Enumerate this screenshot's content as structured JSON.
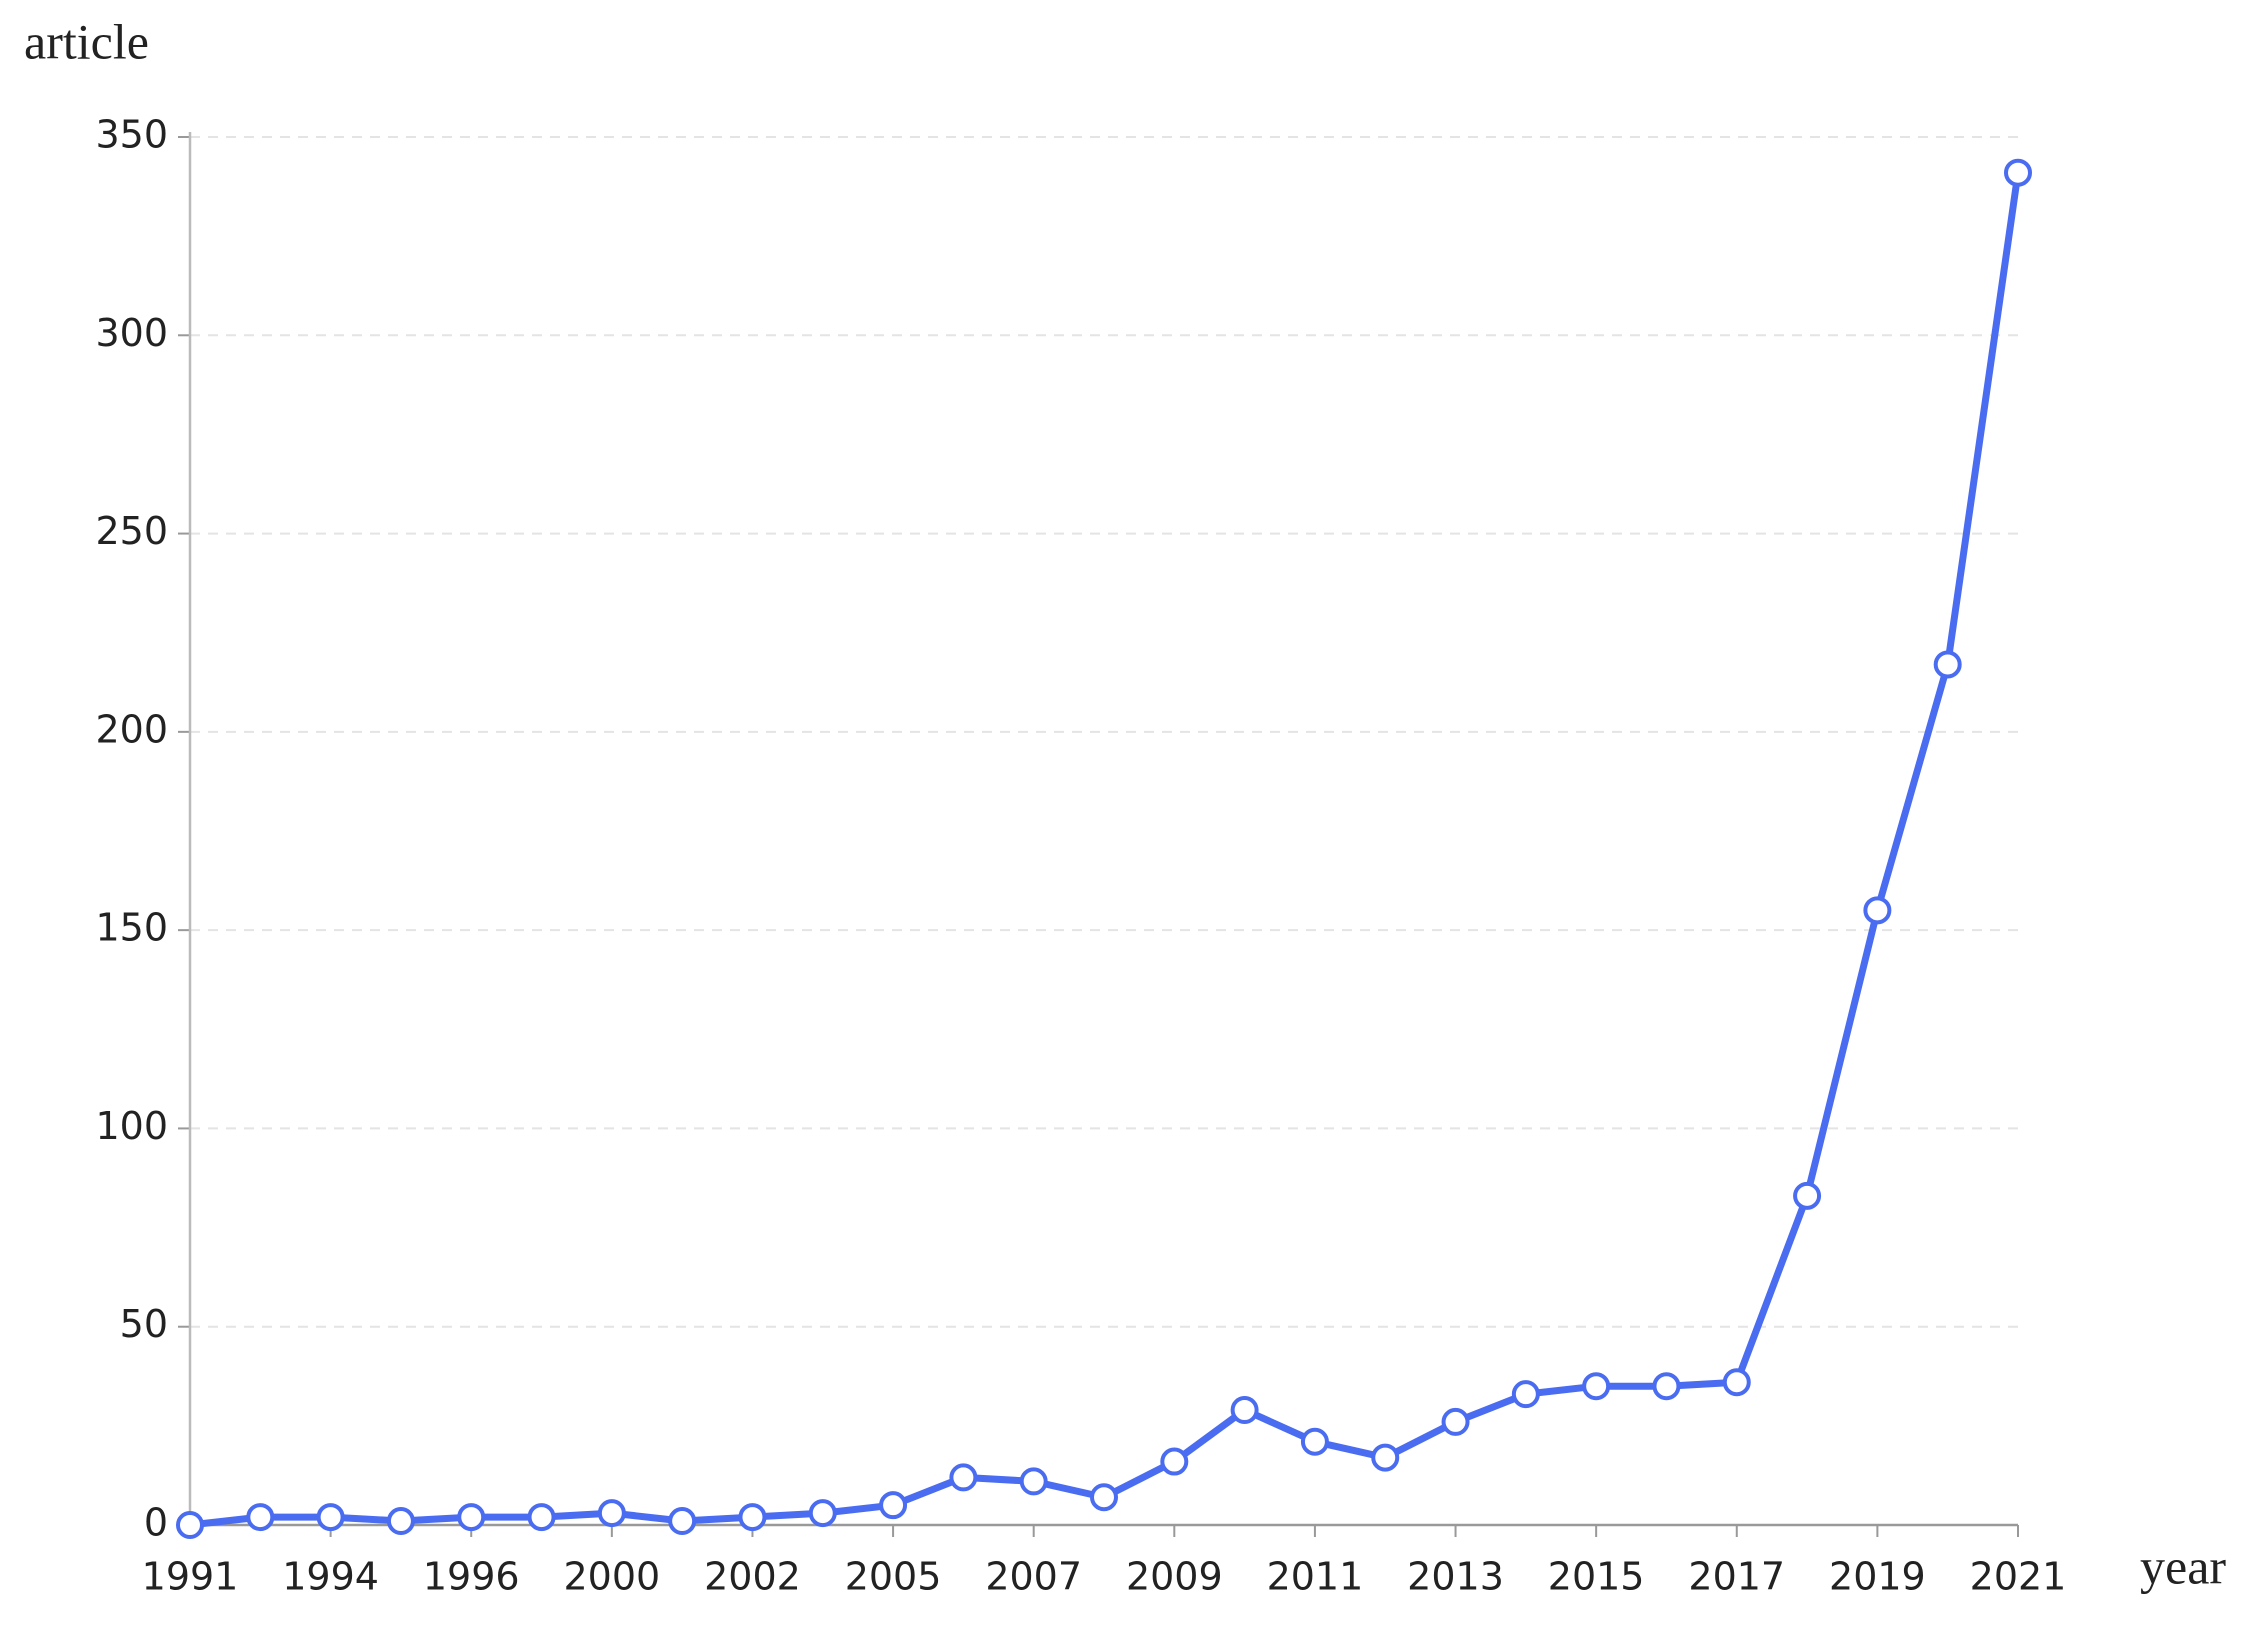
{
  "chart_data": {
    "type": "line",
    "y_label": "article",
    "x_label": "year",
    "categories": [
      "1991",
      null,
      "1994",
      null,
      "1996",
      null,
      "2000",
      null,
      "2002",
      null,
      "2005",
      null,
      "2007",
      null,
      "2009",
      null,
      "2011",
      null,
      "2013",
      null,
      "2015",
      null,
      "2017",
      null,
      "2019",
      null,
      "2021"
    ],
    "values": [
      0,
      2,
      2,
      1,
      2,
      2,
      3,
      1,
      2,
      3,
      5,
      12,
      11,
      7,
      16,
      29,
      21,
      17,
      26,
      33,
      35,
      35,
      36,
      83,
      155,
      217,
      341
    ],
    "color": "#4a6cf0",
    "ylim": [
      0,
      350
    ],
    "yticks": [
      0,
      50,
      100,
      150,
      200,
      250,
      300,
      350
    ],
    "grid": true
  }
}
